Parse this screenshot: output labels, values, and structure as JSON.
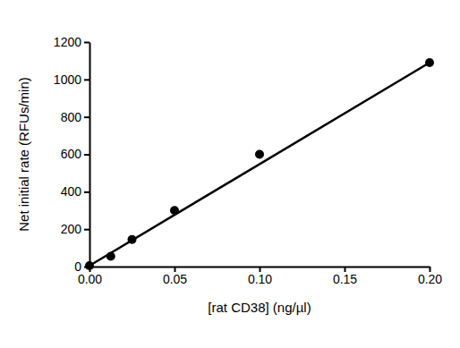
{
  "chart_data": {
    "type": "scatter",
    "x_label": "[rat CD38] (ng/µl)",
    "y_label": "Net initial rate (RFUs/min)",
    "series": [
      {
        "type": "scatter",
        "marker": "circle",
        "color": "#000000",
        "x": [
          0,
          0.0125,
          0.025,
          0.05,
          0.1,
          0.2
        ],
        "values": [
          5,
          55,
          145,
          300,
          600,
          1090
        ]
      },
      {
        "type": "line",
        "line_style": "solid",
        "color": "#000000",
        "x": [
          0,
          0.2
        ],
        "values": [
          5,
          1090
        ]
      }
    ],
    "xlim": [
      0,
      0.2
    ],
    "xticks": [
      {
        "value": 0,
        "label": "0.00"
      },
      {
        "value": 0.05,
        "label": "0.05"
      },
      {
        "value": 0.1,
        "label": "0.10"
      },
      {
        "value": 0.15,
        "label": "0.15"
      },
      {
        "value": 0.2,
        "label": "0.20"
      }
    ],
    "ylim": [
      0,
      1200
    ],
    "yticks": [
      0,
      200,
      400,
      600,
      800,
      1000,
      1200
    ],
    "grid": false
  }
}
